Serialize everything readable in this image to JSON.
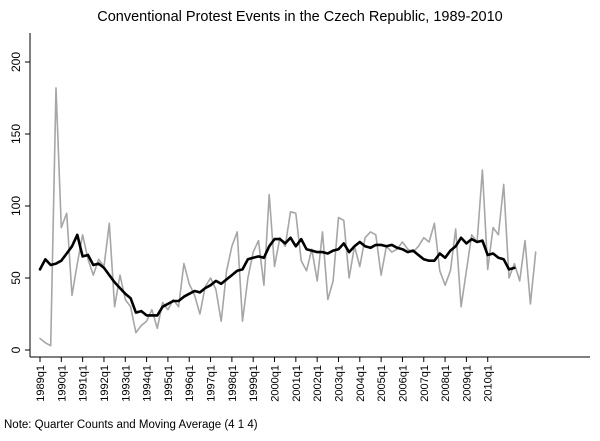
{
  "chart_data": {
    "type": "line",
    "title": "Conventional Protest Events in the Czech Republic, 1989-2010",
    "note": "Note: Quarter Counts and Moving Average (4 1 4)",
    "xlabel": "",
    "ylabel": "",
    "ylim": [
      0,
      200
    ],
    "y_ticks": [
      0,
      50,
      100,
      150,
      200
    ],
    "x_tick_labels": [
      "1989q1",
      "1990q1",
      "1991q1",
      "1992q1",
      "1993q1",
      "1994q1",
      "1995q1",
      "1996q1",
      "1997q1",
      "1998q1",
      "1999q1",
      "2000q1",
      "2001q1",
      "2002q1",
      "2003q1",
      "2004q1",
      "2005q1",
      "2006q1",
      "2007q1",
      "2008q1",
      "2009q1",
      "2010q1"
    ],
    "grid": false,
    "legend": "none",
    "colors": {
      "quarterly": "#a6a6a6",
      "moving_average": "#000000"
    },
    "series": [
      {
        "key": "quarterly",
        "values": [
          8,
          5,
          3,
          182,
          85,
          95,
          38,
          60,
          80,
          63,
          52,
          63,
          58,
          88,
          30,
          52,
          35,
          30,
          12,
          17,
          20,
          28,
          15,
          33,
          28,
          35,
          30,
          60,
          46,
          38,
          25,
          44,
          50,
          42,
          20,
          55,
          72,
          82,
          20,
          50,
          68,
          76,
          45,
          108,
          58,
          78,
          72,
          96,
          95,
          62,
          55,
          70,
          48,
          82,
          35,
          48,
          92,
          90,
          50,
          72,
          58,
          78,
          82,
          80,
          52,
          72,
          68,
          70,
          75,
          70,
          68,
          72,
          78,
          75,
          88,
          55,
          45,
          55,
          84,
          30,
          55,
          80,
          75,
          125,
          56,
          85,
          80,
          115,
          50,
          60,
          48,
          76,
          32,
          68
        ]
      },
      {
        "key": "moving_average",
        "values": [
          56,
          63,
          59,
          60,
          62,
          67,
          72,
          80,
          65,
          66,
          59,
          60,
          57,
          52,
          47,
          43,
          39,
          36,
          26,
          27,
          24,
          24,
          24,
          30,
          32,
          34,
          34,
          37,
          39,
          41,
          40,
          43,
          45,
          48,
          46,
          49,
          52,
          55,
          56,
          63,
          64,
          65,
          64,
          72,
          77,
          77,
          74,
          78,
          72,
          77,
          70,
          69,
          68,
          68,
          67,
          69,
          70,
          74,
          68,
          72,
          75,
          72,
          71,
          73,
          73,
          72,
          73,
          71,
          70,
          68,
          69,
          66,
          63,
          62,
          62,
          67,
          64,
          69,
          72,
          78,
          74,
          77,
          75,
          76,
          66,
          67,
          64,
          63,
          56,
          57
        ]
      }
    ]
  }
}
